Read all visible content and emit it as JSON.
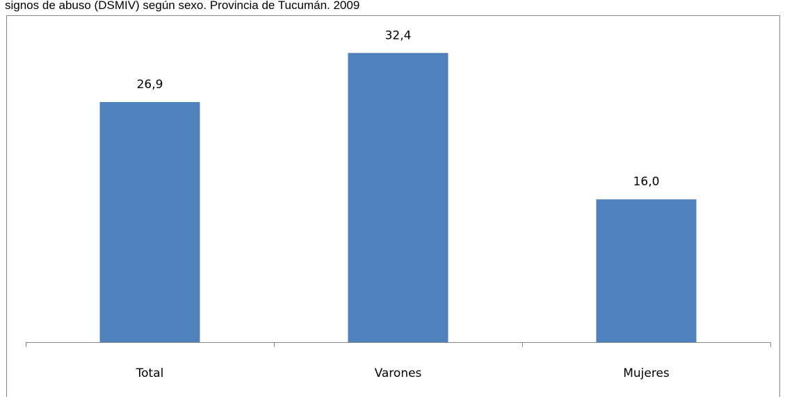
{
  "chart_data": {
    "type": "bar",
    "title": "signos de abuso (DSMIV) según sexo. Provincia de Tucumán. 2009",
    "categories": [
      "Total",
      "Varones",
      "Mujeres"
    ],
    "values": [
      26.9,
      32.4,
      16.0
    ],
    "value_labels": [
      "26,9",
      "32,4",
      "16,0"
    ],
    "color": "#4f81bd",
    "ylim": [
      0,
      36
    ]
  }
}
